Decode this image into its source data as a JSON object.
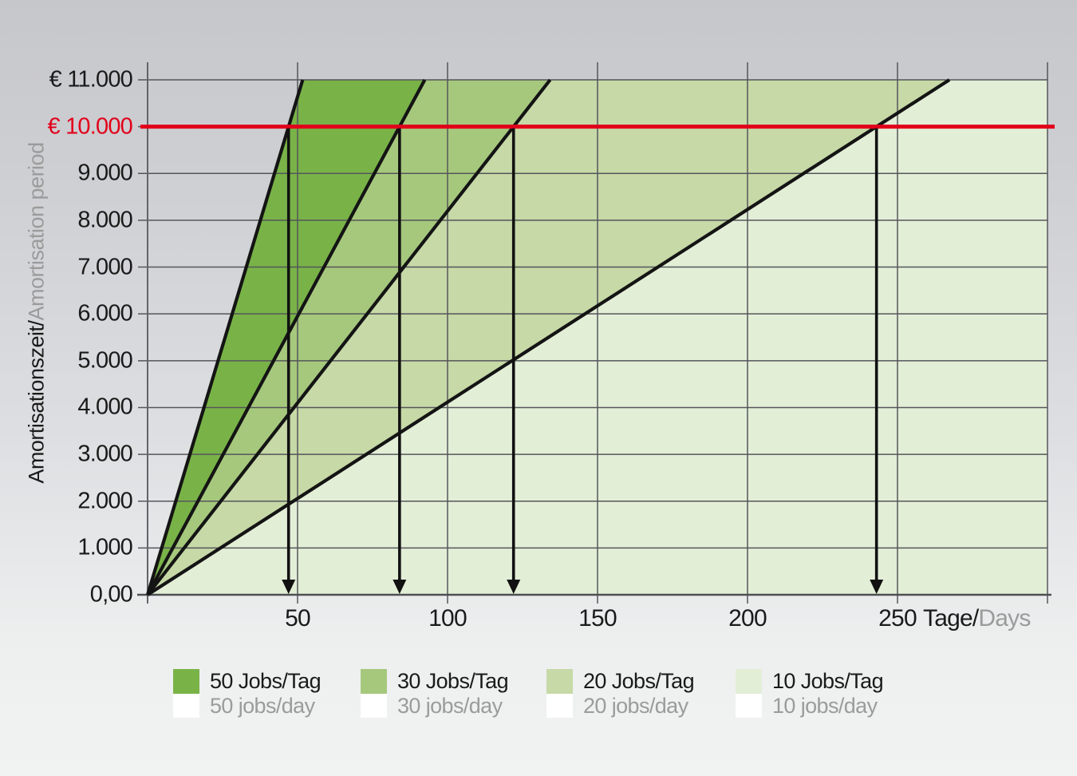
{
  "colors": {
    "target_red": "#e2001a",
    "grid": "#55565a",
    "axis": "#636467",
    "series_line": "#141414",
    "text_primary": "#1a1a1a",
    "text_secondary": "#9b9b9b",
    "background_top": "#c6c7cb",
    "background_bottom": "#f1f2f2"
  },
  "chart_data": {
    "type": "area",
    "title": "",
    "x_axis": {
      "label_de": "Tage/",
      "label_en": "Days",
      "min": 0,
      "max": 300,
      "gridline_step": 50,
      "labeled_ticks": [
        50,
        100,
        150,
        200,
        250
      ]
    },
    "y_axis": {
      "label_de": "Amortisationszeit/",
      "label_en": "Amortisation period",
      "min": 0,
      "max": 11000,
      "tick_step": 1000,
      "tick_labels": [
        {
          "value": 11000,
          "text": "€ 11.000",
          "highlight": false
        },
        {
          "value": 10000,
          "text": "€ 10.000",
          "highlight": true
        },
        {
          "value": 9000,
          "text": "9.000",
          "highlight": false
        },
        {
          "value": 8000,
          "text": "8.000",
          "highlight": false
        },
        {
          "value": 7000,
          "text": "7.000",
          "highlight": false
        },
        {
          "value": 6000,
          "text": "6.000",
          "highlight": false
        },
        {
          "value": 5000,
          "text": "5.000",
          "highlight": false
        },
        {
          "value": 4000,
          "text": "4.000",
          "highlight": false
        },
        {
          "value": 3000,
          "text": "3.000",
          "highlight": false
        },
        {
          "value": 2000,
          "text": "2.000",
          "highlight": false
        },
        {
          "value": 1000,
          "text": "1.000",
          "highlight": false
        },
        {
          "value": 0,
          "text": "0,00",
          "highlight": false
        }
      ]
    },
    "target_line": {
      "value": 10000,
      "color": "#e2001a"
    },
    "series": [
      {
        "label_de": "50 Jobs/Tag",
        "label_en": "50 jobs/day",
        "jobs_per_day": 50,
        "amortisation_days": 47,
        "color": "#79b348"
      },
      {
        "label_de": "30 Jobs/Tag",
        "label_en": "30 jobs/day",
        "jobs_per_day": 30,
        "amortisation_days": 84,
        "color": "#a6c87d"
      },
      {
        "label_de": "20 Jobs/Tag",
        "label_en": "20 jobs/day",
        "jobs_per_day": 20,
        "amortisation_days": 122,
        "color": "#c6d9a7"
      },
      {
        "label_de": "10 Jobs/Tag",
        "label_en": "10 jobs/day",
        "jobs_per_day": 10,
        "amortisation_days": 243,
        "color": "#e3eed7"
      }
    ]
  },
  "legend": {
    "swatch_secondary_color": "#ffffff"
  }
}
